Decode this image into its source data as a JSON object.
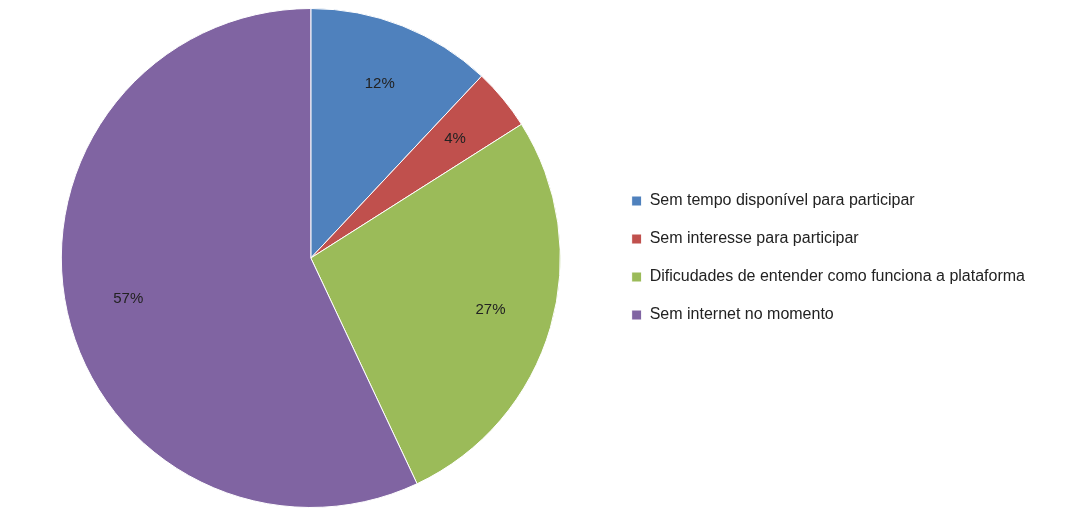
{
  "chart_data": {
    "type": "pie",
    "categories": [
      "Sem tempo disponível para participar",
      "Sem interesse para participar",
      "Dificudades de entender como funciona a plataforma",
      "Sem internet no momento"
    ],
    "values": [
      12,
      4,
      27,
      57
    ],
    "value_labels": [
      "12%",
      "4%",
      "27%",
      "57%"
    ],
    "colors": [
      "#4f81bd",
      "#c0504d",
      "#9bbb59",
      "#8064a2"
    ],
    "legend": "right"
  }
}
